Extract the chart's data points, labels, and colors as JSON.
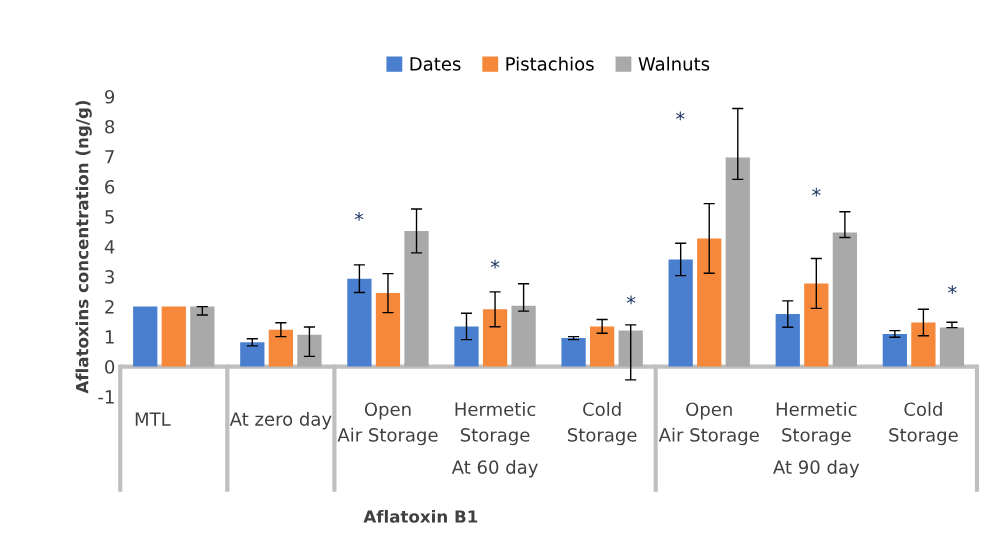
{
  "chart_data": {
    "type": "bar",
    "categories": [
      "MTL",
      "At zero day",
      "Open Air Storage",
      "Hermetic Storage",
      "Cold Storage",
      "Open Air Storage",
      "Hermetic Storage",
      "Cold Storage"
    ],
    "series": [
      {
        "name": "Dates",
        "color": "#4a7fd0",
        "values": [
          2,
          0.81,
          2.93,
          1.34,
          0.95,
          3.57,
          1.75,
          1.09
        ],
        "errors": [
          null,
          0.12,
          0.46,
          0.44,
          0.05,
          0.54,
          0.44,
          0.11
        ]
      },
      {
        "name": "Pistachios",
        "color": "#f5883a",
        "values": [
          2,
          1.23,
          2.45,
          1.91,
          1.34,
          4.27,
          2.77,
          1.47
        ],
        "errors": [
          null,
          0.23,
          0.65,
          0.58,
          0.23,
          1.16,
          0.83,
          0.44
        ]
      },
      {
        "name": "Walnuts",
        "color": "#a9a9a9",
        "values": [
          2,
          1.06,
          4.52,
          2.03,
          1.2,
          6.97,
          4.47,
          1.3
        ],
        "errors": [
          [
            1.72,
            2
          ],
          [
            0.34,
            1.32
          ],
          0.73,
          [
            1.85,
            2.76
          ],
          [
            -0.44,
            1.39
          ],
          [
            6.24,
            8.6
          ],
          [
            4.3,
            5.16
          ],
          [
            1.3,
            1.48
          ]
        ]
      }
    ],
    "ylabel": "Aflatoxins concentration (ng/g)",
    "xlabel": "Aflatoxin B1",
    "ylim": [
      -1,
      9
    ],
    "yticks": [
      -1,
      0,
      1,
      2,
      3,
      4,
      5,
      6,
      7,
      8,
      9
    ],
    "legend": "top",
    "grid": false,
    "annotations": [
      "*",
      "*",
      "*",
      "*",
      "*",
      "*",
      "At 60 day",
      "At 90 day"
    ]
  }
}
